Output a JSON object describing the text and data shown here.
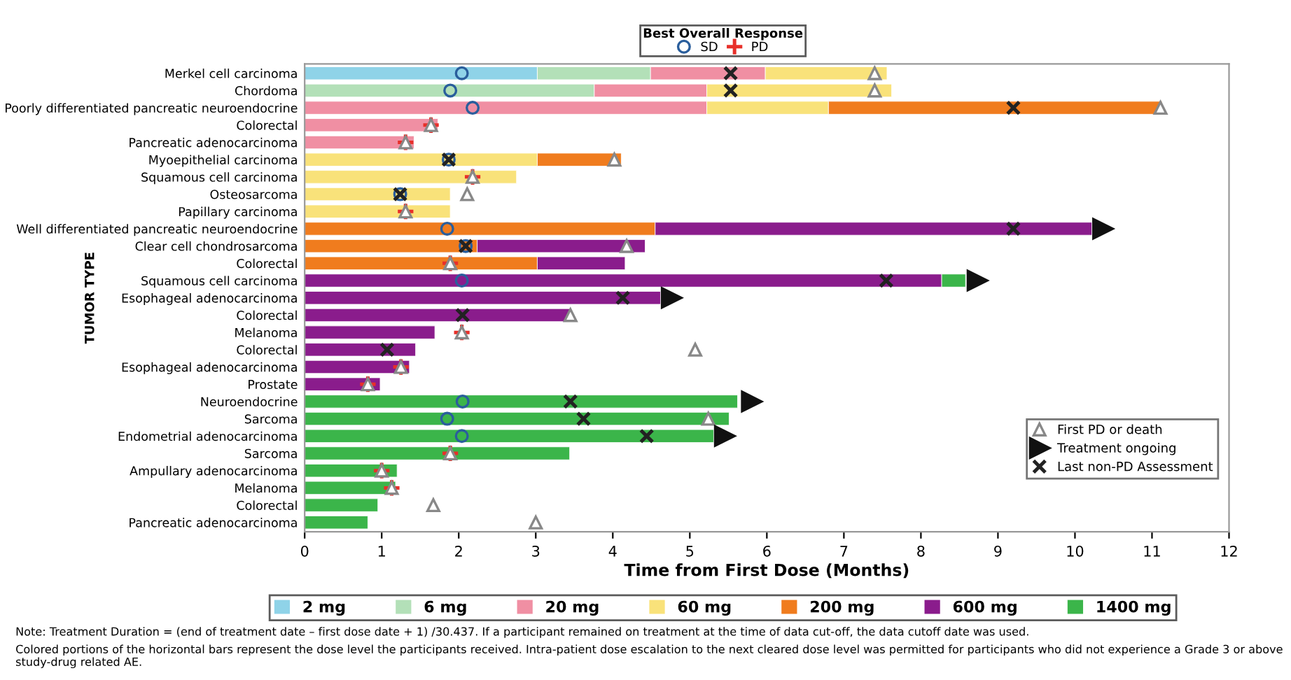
{
  "chart_data": {
    "type": "bar",
    "orientation": "horizontal",
    "stacked": true,
    "xlabel": "Time from First Dose (Months)",
    "ylabel": "TUMOR TYPE",
    "legend_title": "Best Overall Response",
    "categories": [
      "Merkel cell carcinoma",
      "Chordoma",
      "Poorly differentiated pancreatic neuroendocrine",
      "Colorectal",
      "Pancreatic adenocarcinoma",
      "Myoepithelial carcinoma",
      "Squamous cell carcinoma",
      "Osteosarcoma",
      "Papillary carcinoma",
      "Well differentiated pancreatic neuroendocrine",
      "Clear cell chondrosarcoma",
      "Colorectal",
      "Squamous cell carcinoma",
      "Esophageal adenocarcinoma",
      "Colorectal",
      "Melanoma",
      "Colorectal",
      "Esophageal adenocarcinoma",
      "Prostate",
      "Neuroendocrine",
      "Sarcoma",
      "Endometrial adenocarcinoma",
      "Sarcoma",
      "Ampullary adenocarcinoma",
      "Melanoma",
      "Colorectal",
      "Pancreatic adenocarcinoma"
    ],
    "xlim": [
      0,
      12
    ],
    "xticks": [
      0,
      1,
      2,
      3,
      4,
      5,
      6,
      7,
      8,
      9,
      10,
      11,
      12
    ],
    "grid": false,
    "legend": "bottom",
    "series": [
      {
        "name": "2 mg",
        "color": "#8fd3e8",
        "values": [
          3.02,
          null,
          null,
          null,
          null,
          null,
          null,
          null,
          null,
          null,
          null,
          null,
          null,
          null,
          null,
          null,
          null,
          null,
          null,
          null,
          null,
          null,
          null,
          null,
          null,
          null,
          null
        ]
      },
      {
        "name": "6 mg",
        "color": "#b3e0b8",
        "values": [
          1.47,
          3.76,
          null,
          null,
          null,
          null,
          null,
          null,
          null,
          null,
          null,
          null,
          null,
          null,
          null,
          null,
          null,
          null,
          null,
          null,
          null,
          null,
          null,
          null,
          null,
          null,
          null
        ]
      },
      {
        "name": "20 mg",
        "color": "#f08fa3",
        "values": [
          1.49,
          1.46,
          5.22,
          1.73,
          1.42,
          null,
          null,
          null,
          null,
          null,
          null,
          null,
          null,
          null,
          null,
          null,
          null,
          null,
          null,
          null,
          null,
          null,
          null,
          null,
          null,
          null,
          null
        ]
      },
      {
        "name": "60 mg",
        "color": "#f9e27a",
        "values": [
          1.58,
          2.4,
          1.58,
          null,
          null,
          3.02,
          2.75,
          1.89,
          1.89,
          null,
          null,
          null,
          null,
          null,
          null,
          null,
          null,
          null,
          null,
          null,
          null,
          null,
          null,
          null,
          null,
          null,
          null
        ]
      },
      {
        "name": "200 mg",
        "color": "#f07c1e",
        "values": [
          null,
          null,
          4.33,
          null,
          null,
          1.09,
          null,
          null,
          null,
          4.55,
          2.24,
          3.02,
          null,
          null,
          null,
          null,
          null,
          null,
          null,
          null,
          null,
          null,
          null,
          null,
          null,
          null,
          null
        ]
      },
      {
        "name": "600 mg",
        "color": "#8a1c8c",
        "values": [
          null,
          null,
          null,
          null,
          null,
          null,
          null,
          null,
          null,
          5.67,
          2.18,
          1.14,
          8.27,
          4.62,
          3.45,
          1.69,
          1.44,
          1.36,
          0.98,
          null,
          null,
          null,
          null,
          null,
          null,
          null,
          null
        ]
      },
      {
        "name": "1400 mg",
        "color": "#3bb54a",
        "values": [
          null,
          null,
          null,
          null,
          null,
          null,
          null,
          null,
          null,
          null,
          null,
          null,
          0.31,
          null,
          null,
          null,
          null,
          null,
          null,
          5.62,
          5.51,
          5.31,
          3.44,
          1.2,
          1.18,
          0.95,
          0.82
        ]
      },
      {
        "name": "SD",
        "type": "scatter",
        "marker": "circle",
        "color": "#2a5e9c",
        "values": [
          2.04,
          1.89,
          2.18,
          null,
          null,
          1.87,
          null,
          1.24,
          null,
          1.85,
          2.09,
          null,
          2.04,
          null,
          null,
          null,
          null,
          null,
          null,
          2.05,
          1.85,
          2.04,
          null,
          null,
          null,
          null,
          null
        ]
      },
      {
        "name": "PD",
        "type": "scatter",
        "marker": "cross",
        "color": "#e8302a",
        "values": [
          null,
          null,
          null,
          1.64,
          1.31,
          null,
          2.18,
          null,
          1.31,
          null,
          null,
          1.89,
          null,
          null,
          null,
          2.04,
          null,
          1.25,
          0.82,
          null,
          null,
          null,
          1.89,
          1.0,
          1.13,
          null,
          null
        ]
      },
      {
        "name": "First PD or death",
        "type": "scatter",
        "marker": "triangle",
        "color": "#888888",
        "values": [
          7.4,
          7.4,
          11.11,
          1.64,
          1.31,
          4.02,
          2.18,
          2.11,
          1.31,
          null,
          4.18,
          1.89,
          null,
          null,
          3.45,
          2.04,
          5.07,
          1.25,
          0.82,
          null,
          5.24,
          null,
          1.89,
          1.0,
          1.13,
          1.67,
          3.0
        ]
      },
      {
        "name": "Treatment ongoing",
        "type": "scatter",
        "color": "#111111",
        "values": [
          null,
          null,
          null,
          null,
          null,
          null,
          null,
          null,
          null,
          10.36,
          null,
          null,
          8.73,
          4.76,
          null,
          null,
          null,
          null,
          null,
          5.8,
          null,
          5.45,
          null,
          null,
          null,
          null,
          null
        ]
      },
      {
        "name": "Last non-PD Assessment",
        "type": "scatter",
        "marker": "x",
        "color": "#222222",
        "values": [
          5.53,
          5.53,
          9.2,
          null,
          null,
          1.87,
          null,
          1.24,
          null,
          9.2,
          2.09,
          null,
          7.55,
          4.13,
          2.05,
          null,
          1.07,
          null,
          null,
          3.45,
          3.62,
          4.44,
          null,
          null,
          null,
          null,
          null
        ]
      }
    ],
    "annotations": [
      "Note: Treatment Duration = (end of treatment date – first dose date + 1) /30.437. If a participant remained on treatment at the time of data cut-off, the data cutoff date was used.",
      "Colored portions of the horizontal bars represent the dose level the participants received. Intra-patient dose escalation to the next cleared dose level was permitted for participants who did not experience a Grade 3 or above study-drug related AE."
    ]
  }
}
